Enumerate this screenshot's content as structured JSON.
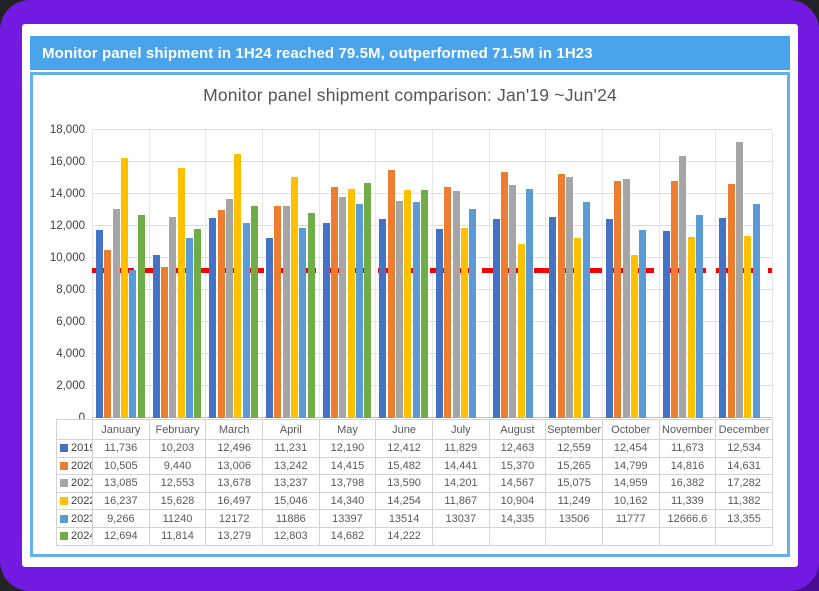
{
  "banner": {
    "text": "Monitor panel shipment in 1H24 reached 79.5M, outperformed 71.5M in 1H23"
  },
  "colors": {
    "frame_purple": "#7219e2",
    "frame_corner_dark": "#470d92",
    "banner_blue": "#4aa4ec",
    "chart_border_blue": "#64b0eb",
    "reference_red": "#f40000"
  },
  "chart_data": {
    "type": "bar",
    "title": "Monitor panel shipment comparison: Jan'19 ~Jun'24",
    "xlabel": "",
    "ylabel": "",
    "ylim": [
      0,
      18000
    ],
    "ytick_step": 2000,
    "ytick_labels": [
      "0",
      "2,000",
      "4,000",
      "6,000",
      "8,000",
      "10,000",
      "12,000",
      "14,000",
      "16,000",
      "18,000"
    ],
    "grid": true,
    "legend_position": "embedded-in-data-table",
    "reference_line": {
      "value": 9200,
      "color": "#f40000",
      "style": "dashed"
    },
    "categories": [
      "January",
      "February",
      "March",
      "April",
      "May",
      "June",
      "July",
      "August",
      "September",
      "October",
      "November",
      "December"
    ],
    "series": [
      {
        "name": "2019",
        "color": "#4472C4",
        "values": [
          11736,
          10203,
          12496,
          11231,
          12190,
          12412,
          11829,
          12463,
          12559,
          12454,
          11673,
          12534
        ]
      },
      {
        "name": "2020",
        "color": "#ED7D31",
        "values": [
          10505,
          9440,
          13006,
          13242,
          14415,
          15482,
          14441,
          15370,
          15265,
          14799,
          14816,
          14631
        ]
      },
      {
        "name": "2021",
        "color": "#A5A5A5",
        "values": [
          13085,
          12553,
          13678,
          13237,
          13798,
          13590,
          14201,
          14567,
          15075,
          14959,
          16382,
          17282
        ]
      },
      {
        "name": "2022",
        "color": "#FFC000",
        "values": [
          16237,
          15628,
          16497,
          15046,
          14340,
          14254,
          11867,
          10904,
          11249,
          10162,
          11339,
          11382
        ]
      },
      {
        "name": "2023",
        "color": "#5B9BD5",
        "values": [
          9266,
          11240,
          12172,
          11886,
          13397,
          13514,
          13037,
          14335,
          13506,
          11777,
          12666.6,
          13355
        ]
      },
      {
        "name": "2024",
        "color": "#70AD47",
        "values": [
          12694,
          11814,
          13279,
          12803,
          14682,
          14222,
          null,
          null,
          null,
          null,
          null,
          null
        ]
      }
    ]
  },
  "data_table": {
    "corner_label": "",
    "columns": [
      "January",
      "February",
      "March",
      "April",
      "May",
      "June",
      "July",
      "August",
      "September",
      "October",
      "November",
      "December"
    ],
    "rows": [
      {
        "year": "2019",
        "swatch": "#4472C4",
        "cells": [
          "11,736",
          "10,203",
          "12,496",
          "11,231",
          "12,190",
          "12,412",
          "11,829",
          "12,463",
          "12,559",
          "12,454",
          "11,673",
          "12,534"
        ]
      },
      {
        "year": "2020",
        "swatch": "#ED7D31",
        "cells": [
          "10,505",
          "9,440",
          "13,006",
          "13,242",
          "14,415",
          "15,482",
          "14,441",
          "15,370",
          "15,265",
          "14,799",
          "14,816",
          "14,631"
        ]
      },
      {
        "year": "2021",
        "swatch": "#A5A5A5",
        "cells": [
          "13,085",
          "12,553",
          "13,678",
          "13,237",
          "13,798",
          "13,590",
          "14,201",
          "14,567",
          "15,075",
          "14,959",
          "16,382",
          "17,282"
        ]
      },
      {
        "year": "2022",
        "swatch": "#FFC000",
        "cells": [
          "16,237",
          "15,628",
          "16,497",
          "15,046",
          "14,340",
          "14,254",
          "11,867",
          "10,904",
          "11,249",
          "10,162",
          "11,339",
          "11,382"
        ]
      },
      {
        "year": "2023",
        "swatch": "#5B9BD5",
        "cells": [
          "9,266",
          "11240",
          "12172",
          "11886",
          "13397",
          "13514",
          "13037",
          "14,335",
          "13506",
          "11777",
          "12666.6",
          "13,355"
        ]
      },
      {
        "year": "2024",
        "swatch": "#70AD47",
        "cells": [
          "12,694",
          "11,814",
          "13,279",
          "12,803",
          "14,682",
          "14,222",
          "",
          "",
          "",
          "",
          "",
          ""
        ]
      }
    ]
  }
}
